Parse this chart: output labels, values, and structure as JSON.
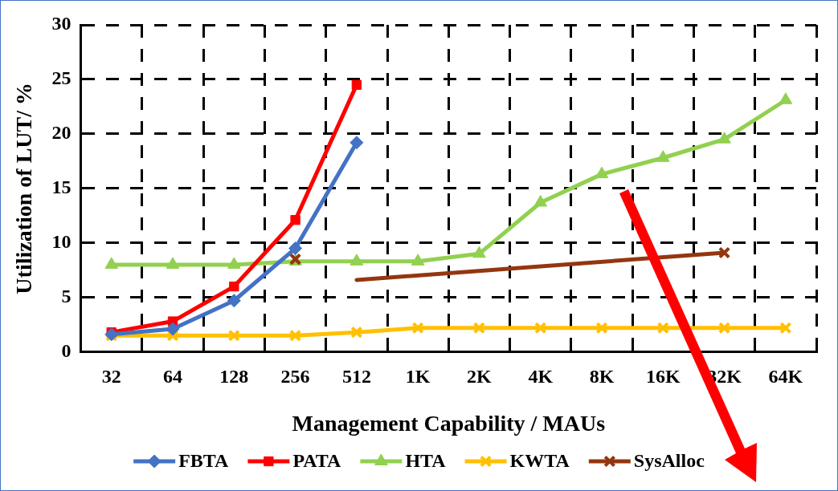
{
  "chart_data": {
    "type": "line",
    "categories": [
      "32",
      "64",
      "128",
      "256",
      "512",
      "1K",
      "2K",
      "4K",
      "8K",
      "16K",
      "32K",
      "64K"
    ],
    "xlabel": "Management Capability / MAUs",
    "ylabel": "Utilization of LUT/ %",
    "ylim": [
      0,
      30
    ],
    "yticks": [
      0,
      5,
      10,
      15,
      20,
      25,
      30
    ],
    "grid": true,
    "legend": "bottom",
    "series": [
      {
        "name": "FBTA",
        "color": "#4472c4",
        "marker": "diamond",
        "values": [
          1.6,
          2.1,
          4.7,
          9.5,
          19.2,
          null,
          null,
          null,
          null,
          null,
          null,
          null
        ]
      },
      {
        "name": "PATA",
        "color": "#ff0000",
        "marker": "square",
        "values": [
          1.8,
          2.8,
          6.0,
          12.1,
          24.5,
          null,
          null,
          null,
          null,
          null,
          null,
          null
        ]
      },
      {
        "name": "HTA",
        "color": "#92d050",
        "marker": "triangle",
        "values": [
          8.0,
          8.0,
          8.0,
          8.3,
          8.3,
          8.3,
          9.0,
          13.7,
          16.3,
          17.8,
          19.5,
          23.1
        ]
      },
      {
        "name": "KWTA",
        "color": "#ffc000",
        "marker": "cross",
        "values": [
          1.5,
          1.5,
          1.5,
          1.5,
          1.8,
          2.2,
          2.2,
          2.2,
          2.2,
          2.2,
          2.2,
          2.2
        ]
      },
      {
        "name": "SysAlloc",
        "type": "scatter",
        "color": "#943610",
        "marker": "cross",
        "values": [
          null,
          null,
          null,
          8.5,
          null,
          null,
          null,
          null,
          null,
          null,
          9.1,
          null
        ]
      },
      {
        "type": "line",
        "color": "#943610",
        "marker": "none",
        "values": [
          null,
          null,
          null,
          null,
          6.6,
          null,
          null,
          null,
          null,
          null,
          9.1,
          null
        ]
      }
    ]
  }
}
